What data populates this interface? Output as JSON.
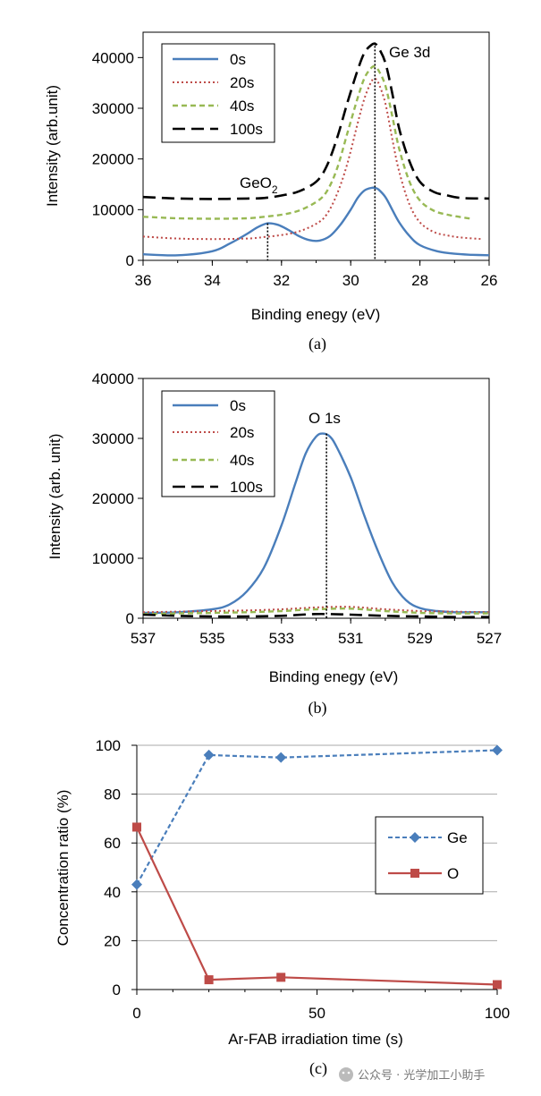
{
  "chart_data": [
    {
      "type": "line",
      "panel_label": "(a)",
      "xlabel": "Binding enegy (eV)",
      "ylabel": "Intensity (arb.unit)",
      "xlim": [
        36,
        26
      ],
      "ylim": [
        0,
        45000
      ],
      "xticks": [
        "36",
        "34",
        "32",
        "30",
        "28",
        "26"
      ],
      "yticks": [
        "0",
        "10000",
        "20000",
        "30000",
        "40000"
      ],
      "legend": [
        "0s",
        "20s",
        "40s",
        "100s"
      ],
      "annotations": [
        {
          "text": "Ge 3d",
          "x": 29.3,
          "y": 43000
        },
        {
          "text": "GeO",
          "sub": "2",
          "x": 32.4,
          "y": 7300
        }
      ],
      "series": [
        {
          "name": "0s",
          "color": "#4a7ebb",
          "dash": "solid",
          "x": [
            36,
            35,
            34,
            33.5,
            33,
            32.7,
            32.4,
            32.1,
            31.8,
            31.5,
            31.2,
            30.9,
            30.6,
            30.3,
            30.0,
            29.8,
            29.6,
            29.4,
            29.3,
            29.2,
            29.0,
            28.8,
            28.6,
            28.3,
            28.0,
            27.5,
            27.0,
            26.5,
            26
          ],
          "values": [
            1200,
            1000,
            1800,
            3300,
            5200,
            6500,
            7300,
            7000,
            6000,
            4800,
            4000,
            3900,
            4800,
            7000,
            10000,
            12300,
            13800,
            14300,
            14300,
            14000,
            12500,
            10000,
            7500,
            4800,
            3000,
            1800,
            1300,
            1100,
            1000
          ]
        },
        {
          "name": "20s",
          "color": "#be4b48",
          "dash": "dot",
          "x": [
            36,
            35,
            34,
            33,
            32.5,
            32,
            31.5,
            31,
            30.7,
            30.4,
            30.1,
            29.8,
            29.6,
            29.4,
            29.3,
            29.2,
            29.0,
            28.8,
            28.6,
            28.3,
            28.0,
            27.6,
            27.2,
            26.8,
            26.2
          ],
          "values": [
            4700,
            4300,
            4200,
            4300,
            4600,
            5000,
            5700,
            7200,
            9000,
            13000,
            19000,
            27000,
            32000,
            35300,
            35800,
            35000,
            31000,
            24000,
            17500,
            11000,
            7500,
            5600,
            4900,
            4500,
            4200
          ]
        },
        {
          "name": "40s",
          "color": "#98b954",
          "dash": "dash",
          "x": [
            36,
            35,
            34,
            33,
            32.5,
            32,
            31.5,
            31,
            30.7,
            30.4,
            30.1,
            29.8,
            29.6,
            29.4,
            29.3,
            29.2,
            29.0,
            28.8,
            28.6,
            28.3,
            28.0,
            27.6,
            27.2,
            26.8,
            26.5
          ],
          "values": [
            8600,
            8300,
            8200,
            8300,
            8600,
            9000,
            9800,
            11500,
            13500,
            18000,
            25000,
            32000,
            36000,
            38000,
            38200,
            37500,
            34500,
            28500,
            22000,
            15500,
            11800,
            9800,
            9000,
            8500,
            8200
          ]
        },
        {
          "name": "100s",
          "color": "#000000",
          "dash": "longdash",
          "x": [
            36,
            35,
            34,
            33,
            32.5,
            32,
            31.5,
            31,
            30.7,
            30.4,
            30.1,
            29.8,
            29.6,
            29.4,
            29.3,
            29.2,
            29.0,
            28.8,
            28.6,
            28.3,
            28.0,
            27.6,
            27.2,
            26.8,
            26
          ],
          "values": [
            12500,
            12200,
            12100,
            12200,
            12300,
            12800,
            13600,
            15500,
            18500,
            24000,
            31000,
            37500,
            41000,
            42500,
            42700,
            42000,
            39000,
            33000,
            26000,
            19500,
            15500,
            13500,
            12800,
            12300,
            12200
          ]
        }
      ]
    },
    {
      "type": "line",
      "panel_label": "(b)",
      "xlabel": "Binding enegy (eV)",
      "ylabel": "Intensity (arb. unit)",
      "xlim": [
        537,
        527
      ],
      "ylim": [
        0,
        40000
      ],
      "xticks": [
        "537",
        "535",
        "533",
        "531",
        "529",
        "527"
      ],
      "yticks": [
        "0",
        "10000",
        "20000",
        "30000",
        "40000"
      ],
      "legend": [
        "0s",
        "20s",
        "40s",
        "100s"
      ],
      "annotations": [
        {
          "text": "O 1s",
          "x": 531.7,
          "y": 30800
        }
      ],
      "series": [
        {
          "name": "0s",
          "color": "#4a7ebb",
          "dash": "solid",
          "x": [
            537,
            536,
            535,
            534.5,
            534,
            533.5,
            533,
            532.6,
            532.3,
            532.0,
            531.8,
            531.6,
            531.4,
            531.0,
            530.6,
            530.2,
            529.8,
            529.4,
            529,
            528.5,
            528,
            527.5,
            527
          ],
          "values": [
            900,
            1000,
            1500,
            2300,
            4500,
            8500,
            15500,
            22500,
            27500,
            30300,
            30800,
            30300,
            28500,
            23500,
            17000,
            11000,
            6000,
            3000,
            1700,
            1200,
            1000,
            1000,
            1000
          ]
        },
        {
          "name": "20s",
          "color": "#be4b48",
          "dash": "dot",
          "x": [
            537,
            536,
            535,
            534,
            533,
            532,
            531,
            530,
            529,
            528,
            527
          ],
          "values": [
            1000,
            1100,
            1200,
            1300,
            1500,
            1800,
            1900,
            1500,
            1200,
            1100,
            1000
          ]
        },
        {
          "name": "40s",
          "color": "#98b954",
          "dash": "dash",
          "x": [
            537,
            536,
            535,
            534,
            533,
            532,
            531,
            530,
            529,
            528,
            527
          ],
          "values": [
            700,
            800,
            900,
            1000,
            1200,
            1500,
            1600,
            1200,
            900,
            800,
            800
          ]
        },
        {
          "name": "100s",
          "color": "#000000",
          "dash": "longdash",
          "x": [
            537,
            536,
            535,
            534,
            533,
            532,
            531,
            530,
            529,
            528,
            527
          ],
          "values": [
            600,
            400,
            300,
            300,
            400,
            700,
            600,
            400,
            300,
            200,
            200
          ]
        }
      ]
    },
    {
      "type": "line",
      "panel_label": "(c)",
      "xlabel": "Ar-FAB irradiation time (s)",
      "ylabel": "Concentration ratio (%)",
      "xlim": [
        0,
        100
      ],
      "ylim": [
        0,
        100
      ],
      "xticks": [
        "0",
        "50",
        "100"
      ],
      "yticks": [
        "0",
        "20",
        "40",
        "60",
        "80",
        "100"
      ],
      "grid": true,
      "legend": [
        "Ge",
        "O"
      ],
      "series": [
        {
          "name": "Ge",
          "color": "#4a7ebb",
          "dash": "dash",
          "marker": "diamond",
          "x": [
            0,
            20,
            40,
            100
          ],
          "values": [
            43,
            96,
            95,
            98
          ]
        },
        {
          "name": "O",
          "color": "#be4b48",
          "dash": "solid",
          "marker": "square",
          "x": [
            0,
            20,
            40,
            100
          ],
          "values": [
            66.5,
            4,
            5,
            2
          ]
        }
      ]
    }
  ],
  "watermark": "公众号 · 光学加工小助手"
}
